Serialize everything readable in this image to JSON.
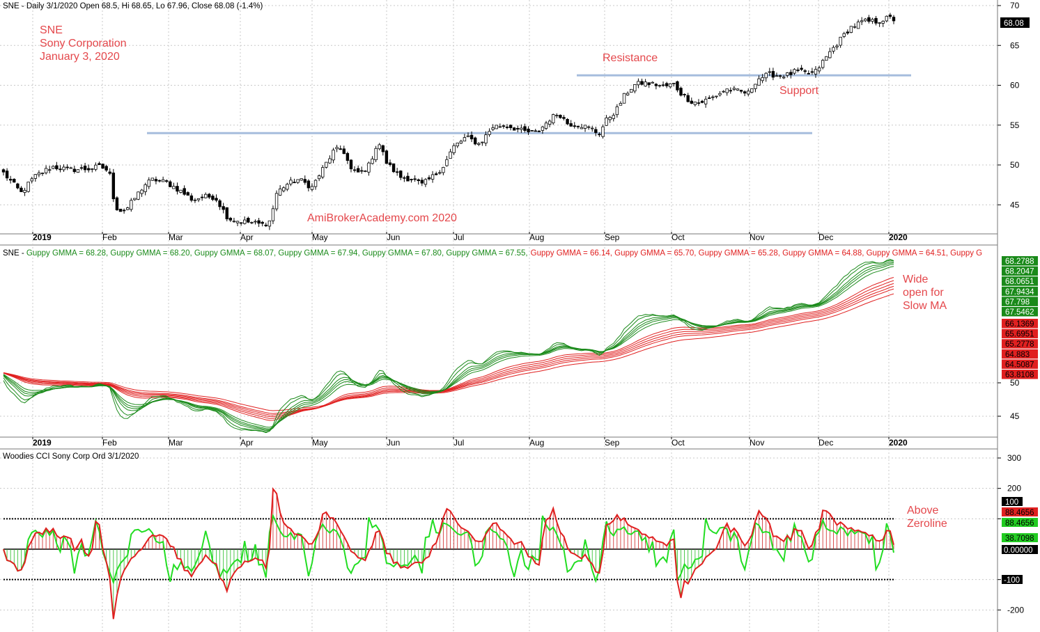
{
  "price_panel": {
    "header": "SNE - Daily 3/1/2020 Open 68.5, Hi 68.65, Lo 67.96, Close 68.08 (-1.4%)",
    "notes": [
      "SNE",
      "Sony Corporation",
      "January 3, 2020"
    ],
    "watermark": "AmiBroker​Academy.com 2020",
    "resistance_label": "Resistance",
    "support_label": "Support",
    "last_close_label": "68.08",
    "ticks": [
      "70",
      "65",
      "60",
      "55",
      "50",
      "45"
    ]
  },
  "gmma_panel": {
    "header_prefix": "SNE - ",
    "fast_label": "Guppy GMMA = 68.28, Guppy GMMA = 68.20, Guppy GMMA = 68.07, Guppy GMMA = 67.94, Guppy GMMA = 67.80, Guppy GMMA = 67.55,",
    "slow_label": "Guppy GMMA = 66.14, Guppy GMMA = 65.70, Guppy GMMA = 65.28, Guppy GMMA = 64.88, Guppy GMMA = 64.51, Guppy G",
    "note": [
      "Wide",
      "open for",
      "Slow MA"
    ],
    "ticks": [
      "50",
      "45"
    ],
    "fast_values": [
      "68.2788",
      "68.2047",
      "68.0651",
      "67.9434",
      "67.798",
      "67.5462"
    ],
    "slow_values": [
      "66.1369",
      "65.6951",
      "65.2778",
      "64.883",
      "64.5087",
      "63.8108"
    ]
  },
  "cci_panel": {
    "header": "Woodies CCI Sony Corp Ord 3/1/2020",
    "note": [
      "Above",
      "Zeroline"
    ],
    "ticks": [
      "300",
      "200",
      "100",
      "-100",
      "-200"
    ],
    "labels": {
      "upper": "100",
      "red": "88.4656",
      "green_cci": "88.4656",
      "turbo": "38.7098",
      "zero": "0.00000",
      "lower": "-100"
    }
  },
  "x_axis": {
    "months": [
      "2019",
      "Feb",
      "Mar",
      "Apr",
      "May",
      "Jun",
      "Jul",
      "Aug",
      "Sep",
      "Oct",
      "Nov",
      "Dec",
      "2020"
    ]
  },
  "colors": {
    "up": "#ffffff",
    "down": "#000000",
    "fast": "#1a8a1a",
    "slow": "#e02020",
    "cci": "#e02020",
    "turbo": "#22dd22",
    "hline": "#a6bddd",
    "note": "#e4474b"
  },
  "chart_data": [
    {
      "type": "candlestick",
      "title": "SNE - Daily 3/1/2020 Open 68.5, Hi 68.65, Lo 67.96, Close 68.08 (-1.4%)",
      "ylim": [
        41,
        71
      ],
      "x_months": [
        "2019",
        "Feb",
        "Mar",
        "Apr",
        "May",
        "Jun",
        "Jul",
        "Aug",
        "Sep",
        "Oct",
        "Nov",
        "Dec",
        "2020"
      ],
      "close_path": [
        [
          0,
          49
        ],
        [
          8,
          46.5
        ],
        [
          14,
          48.5
        ],
        [
          22,
          49.8
        ],
        [
          30,
          49.4
        ],
        [
          38,
          49.5
        ],
        [
          44,
          49.8
        ],
        [
          48,
          49.2
        ],
        [
          50,
          45.8
        ],
        [
          52,
          44.2
        ],
        [
          56,
          44.5
        ],
        [
          60,
          46
        ],
        [
          64,
          47.5
        ],
        [
          68,
          48.2
        ],
        [
          74,
          47.8
        ],
        [
          80,
          46.8
        ],
        [
          86,
          45.6
        ],
        [
          90,
          46
        ],
        [
          96,
          46
        ],
        [
          102,
          43.3
        ],
        [
          106,
          43
        ],
        [
          112,
          42.8
        ],
        [
          118,
          42.5
        ],
        [
          121,
          43
        ],
        [
          124,
          46.5
        ],
        [
          128,
          47.5
        ],
        [
          134,
          48.2
        ],
        [
          140,
          47.2
        ],
        [
          146,
          50
        ],
        [
          150,
          51.8
        ],
        [
          154,
          52
        ],
        [
          158,
          49.2
        ],
        [
          162,
          49
        ],
        [
          166,
          50
        ],
        [
          170,
          53
        ],
        [
          174,
          50.2
        ],
        [
          180,
          48.5
        ],
        [
          186,
          48.2
        ],
        [
          190,
          47.5
        ],
        [
          196,
          48.8
        ],
        [
          200,
          50
        ],
        [
          204,
          52.2
        ],
        [
          210,
          53.5
        ],
        [
          216,
          52.6
        ],
        [
          222,
          54.8
        ],
        [
          228,
          55
        ],
        [
          236,
          54.2
        ],
        [
          242,
          54
        ],
        [
          248,
          55.8
        ],
        [
          252,
          56.5
        ],
        [
          256,
          55.2
        ],
        [
          262,
          55
        ],
        [
          268,
          54.4
        ],
        [
          270,
          53.8
        ],
        [
          274,
          55.8
        ],
        [
          278,
          56.8
        ],
        [
          282,
          58.8
        ],
        [
          286,
          60
        ],
        [
          290,
          60.3
        ],
        [
          296,
          60.1
        ],
        [
          300,
          59.8
        ],
        [
          304,
          60.2
        ],
        [
          308,
          58.8
        ],
        [
          312,
          58
        ],
        [
          316,
          57.8
        ],
        [
          322,
          58.5
        ],
        [
          328,
          59.5
        ],
        [
          334,
          59.2
        ],
        [
          338,
          59
        ],
        [
          342,
          60.8
        ],
        [
          348,
          61.4
        ],
        [
          352,
          61.2
        ],
        [
          356,
          61.3
        ],
        [
          360,
          61.8
        ],
        [
          364,
          61.5
        ],
        [
          368,
          61.5
        ],
        [
          372,
          63
        ],
        [
          376,
          64.5
        ],
        [
          380,
          65.8
        ],
        [
          384,
          67.2
        ],
        [
          390,
          68
        ],
        [
          396,
          68
        ],
        [
          400,
          68.3
        ],
        [
          402,
          68.5
        ],
        [
          404,
          68.1
        ]
      ],
      "lines": {
        "support_resistance": [
          54,
          61.2
        ]
      },
      "last_close": 68.08
    },
    {
      "type": "line",
      "title": "SNE - Guppy GMMA",
      "ylim": [
        42,
        72
      ],
      "series": [
        {
          "name": "Guppy GMMA",
          "values": [
            68.28,
            68.2,
            68.07,
            67.94,
            67.8,
            67.55
          ]
        },
        {
          "name": "Guppy GMMA",
          "values": [
            66.14,
            65.7,
            65.28,
            64.88,
            64.51
          ]
        }
      ],
      "fast_last": [
        68.2788,
        68.2047,
        68.0651,
        67.9434,
        67.798,
        67.5462
      ],
      "slow_last": [
        66.1369,
        65.6951,
        65.2778,
        64.883,
        64.5087,
        63.8108
      ]
    },
    {
      "type": "line",
      "title": "Woodies CCI Sony Corp Ord 3/1/2020",
      "ylim": [
        -240,
        320
      ],
      "reference_lines": [
        100,
        0,
        -100
      ],
      "last_values": {
        "cci": 88.4656,
        "turbo": 38.7098
      }
    }
  ]
}
